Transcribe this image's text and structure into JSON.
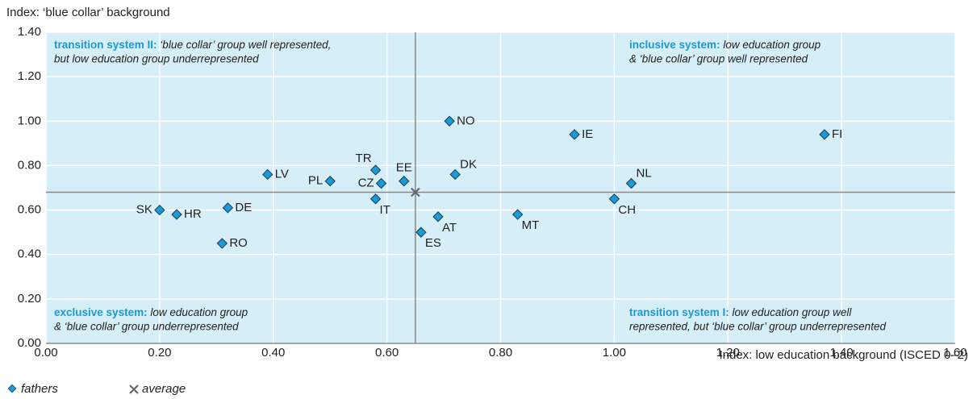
{
  "chart_data": {
    "type": "scatter",
    "ylabel": "Index: ‘blue collar’ background",
    "xlabel": "Index: low education background (ISCED 0–2)",
    "xlim": [
      0,
      1.6
    ],
    "ylim": [
      0,
      1.4
    ],
    "xticks": [
      {
        "value": 0,
        "label": "0.00"
      },
      {
        "value": 0.2,
        "label": "0.20"
      },
      {
        "value": 0.4,
        "label": "0.40"
      },
      {
        "value": 0.6,
        "label": "0.60"
      },
      {
        "value": 0.8,
        "label": "0.80"
      },
      {
        "value": 1.0,
        "label": "1.00"
      },
      {
        "value": 1.2,
        "label": "1.20"
      },
      {
        "value": 1.4,
        "label": "1.40"
      },
      {
        "value": 1.6,
        "label": "1.60"
      }
    ],
    "yticks": [
      {
        "value": 0,
        "label": "0.00"
      },
      {
        "value": 0.2,
        "label": "0.20"
      },
      {
        "value": 0.4,
        "label": "0.40"
      },
      {
        "value": 0.6,
        "label": "0.60"
      },
      {
        "value": 0.8,
        "label": "0.80"
      },
      {
        "value": 1.0,
        "label": "1.00"
      },
      {
        "value": 1.2,
        "label": "1.20"
      },
      {
        "value": 1.4,
        "label": "1.40"
      }
    ],
    "grid": true,
    "background": "#d6eef8",
    "series": [
      {
        "name": "fathers",
        "color": "#1a9ad6",
        "labels": [
          "SK",
          "HR",
          "RO",
          "DE",
          "LV",
          "PL",
          "TR",
          "CZ",
          "IT",
          "EE",
          "ES",
          "AT",
          "NO",
          "DK",
          "MT",
          "IE",
          "CH",
          "NL",
          "FI"
        ],
        "x": [
          0.2,
          0.23,
          0.31,
          0.32,
          0.39,
          0.5,
          0.58,
          0.59,
          0.58,
          0.63,
          0.66,
          0.69,
          0.71,
          0.72,
          0.83,
          0.93,
          1.0,
          1.03,
          1.37
        ],
        "values": [
          0.6,
          0.58,
          0.45,
          0.61,
          0.76,
          0.73,
          0.78,
          0.72,
          0.65,
          0.73,
          0.5,
          0.57,
          1.0,
          0.76,
          0.58,
          0.94,
          0.65,
          0.72,
          0.94
        ]
      }
    ],
    "average": {
      "name": "average",
      "color": "#666666",
      "x": 0.65,
      "y": 0.68
    },
    "annotations": [
      {
        "bold": "transition system II:",
        "lines": [
          "‘blue collar’ group well represented,",
          "but low education group underrepresented"
        ]
      },
      {
        "bold": "inclusive system:",
        "lines": [
          "low education group",
          "& ‘blue collar’ group well represented"
        ]
      },
      {
        "bold": "exclusive system:",
        "lines": [
          "low education group",
          "& ‘blue collar’ group underrepresented"
        ]
      },
      {
        "bold": "transition system I:",
        "lines": [
          "low education group well",
          "represented, but ‘blue collar’ group underrepresented"
        ]
      }
    ]
  }
}
